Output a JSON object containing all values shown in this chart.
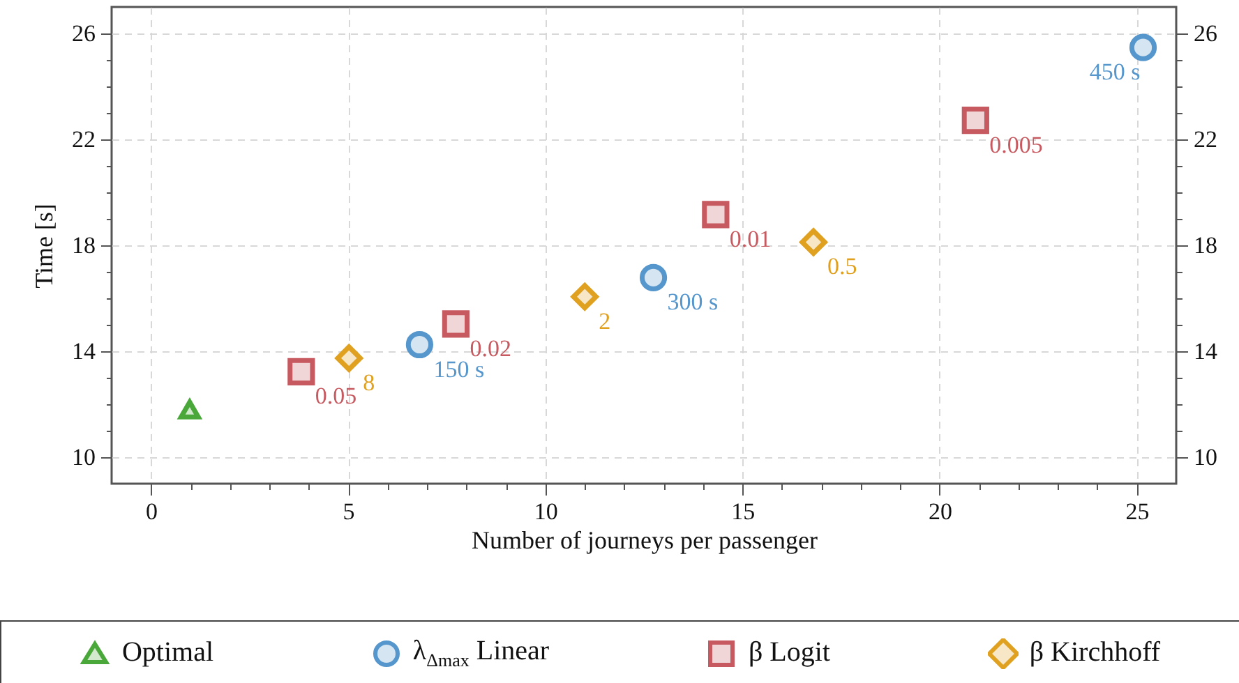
{
  "chart_data": {
    "type": "scatter",
    "xlabel": "Number of journeys per passenger",
    "ylabel": "Time [s]",
    "xlim": [
      -1,
      26
    ],
    "ylim": [
      9,
      27
    ],
    "y2lim": [
      9,
      27
    ],
    "xticks": [
      0,
      {
        "value": 1,
        "label": null
      },
      {
        "value": 2,
        "label": null
      },
      {
        "value": 3,
        "label": null
      },
      {
        "value": 4,
        "label": null
      },
      5,
      {
        "value": 6,
        "label": null
      },
      {
        "value": 7,
        "label": null
      },
      {
        "value": 8,
        "label": null
      },
      {
        "value": 9,
        "label": null
      },
      10,
      {
        "value": 11,
        "label": null
      },
      {
        "value": 12,
        "label": null
      },
      {
        "value": 13,
        "label": null
      },
      {
        "value": 14,
        "label": null
      },
      15,
      {
        "value": 16,
        "label": null
      },
      {
        "value": 17,
        "label": null
      },
      {
        "value": 18,
        "label": null
      },
      {
        "value": 19,
        "label": null
      },
      20,
      {
        "value": 21,
        "label": null
      },
      {
        "value": 22,
        "label": null
      },
      {
        "value": 23,
        "label": null
      },
      {
        "value": 24,
        "label": null
      },
      25
    ],
    "yticks": [
      10,
      {
        "value": 11,
        "label": null
      },
      {
        "value": 12,
        "label": null
      },
      {
        "value": 13,
        "label": null
      },
      14,
      {
        "value": 15,
        "label": null
      },
      {
        "value": 16,
        "label": null
      },
      {
        "value": 17,
        "label": null
      },
      18,
      {
        "value": 19,
        "label": null
      },
      {
        "value": 20,
        "label": null
      },
      {
        "value": 21,
        "label": null
      },
      22,
      {
        "value": 23,
        "label": null
      },
      {
        "value": 24,
        "label": null
      },
      {
        "value": 25,
        "label": null
      },
      26
    ],
    "y2ticks": [
      10,
      {
        "value": 11,
        "label": null
      },
      {
        "value": 12,
        "label": null
      },
      {
        "value": 13,
        "label": null
      },
      14,
      {
        "value": 15,
        "label": null
      },
      {
        "value": 16,
        "label": null
      },
      {
        "value": 17,
        "label": null
      },
      18,
      {
        "value": 19,
        "label": null
      },
      {
        "value": 20,
        "label": null
      },
      {
        "value": 21,
        "label": null
      },
      22,
      {
        "value": 23,
        "label": null
      },
      {
        "value": 24,
        "label": null
      },
      {
        "value": 25,
        "label": null
      },
      26
    ],
    "grid": true,
    "legend": "bottom",
    "series": [
      {
        "name": "Optimal",
        "color": "#4aa83a",
        "marker": "triangle",
        "x": [
          0.98
        ],
        "values": [
          11.8
        ]
      },
      {
        "name": "λ$_{Δmax}$ Linear",
        "color": "#5596cc",
        "marker": "circle",
        "x": [
          6.81,
          12.74,
          25.16
        ],
        "values": [
          14.25,
          16.78,
          25.47
        ]
      },
      {
        "name": "β Logit",
        "color": "#c65a60",
        "marker": "square",
        "x": [
          3.81,
          7.73,
          14.32,
          20.91
        ],
        "values": [
          13.23,
          15.03,
          19.16,
          22.72
        ]
      },
      {
        "name": "β Kirchhoff",
        "color": "#e0a020",
        "marker": "diamond",
        "x": [
          5.02,
          11.0,
          16.8
        ],
        "values": [
          13.74,
          16.06,
          18.12
        ]
      }
    ],
    "annotations": [
      {
        "text": "150 s",
        "x": 6.81,
        "y": 14.25
      },
      {
        "text": "300 s",
        "x": 12.74,
        "y": 16.78
      },
      {
        "text": "450 s",
        "x": 25.16,
        "y": 25.47
      },
      {
        "text": "0.05",
        "x": 3.81,
        "y": 13.23
      },
      {
        "text": "0.02",
        "x": 7.73,
        "y": 15.03
      },
      {
        "text": "0.01",
        "x": 14.32,
        "y": 19.16
      },
      {
        "text": "0.005",
        "x": 20.91,
        "y": 22.72
      },
      {
        "text": "8",
        "x": 5.02,
        "y": 13.74
      },
      {
        "text": "2",
        "x": 11.0,
        "y": 16.06
      },
      {
        "text": "0.5",
        "x": 16.8,
        "y": 18.12
      }
    ]
  }
}
